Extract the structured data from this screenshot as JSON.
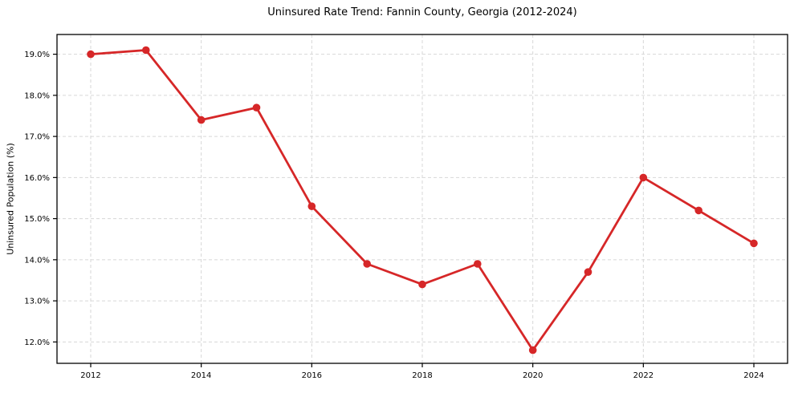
{
  "chart_data": {
    "type": "line",
    "title": "Uninsured Rate Trend: Fannin County, Georgia (2012-2024)",
    "xlabel": "",
    "ylabel": "Uninsured Population (%)",
    "x": [
      2012,
      2013,
      2014,
      2015,
      2016,
      2017,
      2018,
      2019,
      2020,
      2021,
      2022,
      2023,
      2024
    ],
    "values": [
      19.0,
      19.1,
      17.4,
      17.7,
      15.3,
      13.9,
      13.4,
      13.9,
      11.8,
      13.7,
      16.0,
      15.2,
      14.4
    ],
    "xlim": [
      2011.39,
      2024.61
    ],
    "ylim": [
      11.48,
      19.48
    ],
    "grid": true,
    "legend": "none",
    "line_color": "#d62728",
    "marker": "circle",
    "x_ticks": [
      {
        "value": 2012,
        "label": "2012"
      },
      {
        "value": 2014,
        "label": "2014"
      },
      {
        "value": 2016,
        "label": "2016"
      },
      {
        "value": 2018,
        "label": "2018"
      },
      {
        "value": 2020,
        "label": "2020"
      },
      {
        "value": 2022,
        "label": "2022"
      },
      {
        "value": 2024,
        "label": "2024"
      }
    ],
    "y_ticks": [
      {
        "value": 12.0,
        "label": "12.0%"
      },
      {
        "value": 13.0,
        "label": "13.0%"
      },
      {
        "value": 14.0,
        "label": "14.0%"
      },
      {
        "value": 15.0,
        "label": "15.0%"
      },
      {
        "value": 16.0,
        "label": "16.0%"
      },
      {
        "value": 17.0,
        "label": "17.0%"
      },
      {
        "value": 18.0,
        "label": "18.0%"
      },
      {
        "value": 19.0,
        "label": "19.0%"
      }
    ],
    "colors": {
      "grid": "#d7d7d7",
      "spine": "#000000",
      "tick_label": "#000000",
      "background": "#ffffff"
    }
  }
}
